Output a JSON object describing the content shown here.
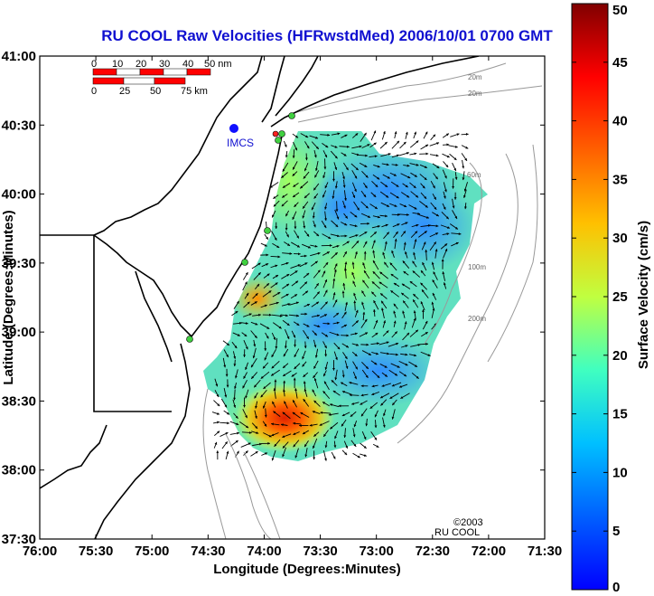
{
  "title": "RU COOL Raw Velocities (HFRwstdMed) 2006/10/01 0700 GMT",
  "x_axis": {
    "label": "Longitude (Degrees:Minutes)",
    "ticks": [
      "76:00",
      "75:30",
      "75:00",
      "74:30",
      "74:00",
      "73:30",
      "73:00",
      "72:30",
      "72:00",
      "71:30"
    ]
  },
  "y_axis": {
    "label": "Latitude (Degrees:Minutes)",
    "ticks": [
      "41:00",
      "40:30",
      "40:00",
      "39:30",
      "39:00",
      "38:30",
      "38:00",
      "37:30"
    ]
  },
  "colorbar": {
    "label": "Surface Velocity (cm/s)",
    "ticks": [
      "50",
      "45",
      "40",
      "35",
      "30",
      "25",
      "20",
      "15",
      "10",
      "5",
      "0"
    ],
    "range": [
      0,
      50
    ],
    "colors": [
      "#0000ff",
      "#0080ff",
      "#00ffff",
      "#80ff80",
      "#ffff00",
      "#ff8000",
      "#ff0000",
      "#800000"
    ]
  },
  "scale_bar": {
    "nm_labels": [
      "0",
      "10",
      "20",
      "30",
      "40",
      "50 nm"
    ],
    "km_labels": [
      "0",
      "25",
      "50",
      "75 km"
    ]
  },
  "station_label": "IMCS",
  "copyright": [
    "©2003",
    "RU COOL"
  ],
  "contour_labels": [
    "20m",
    "60m",
    "100m",
    "200m"
  ]
}
